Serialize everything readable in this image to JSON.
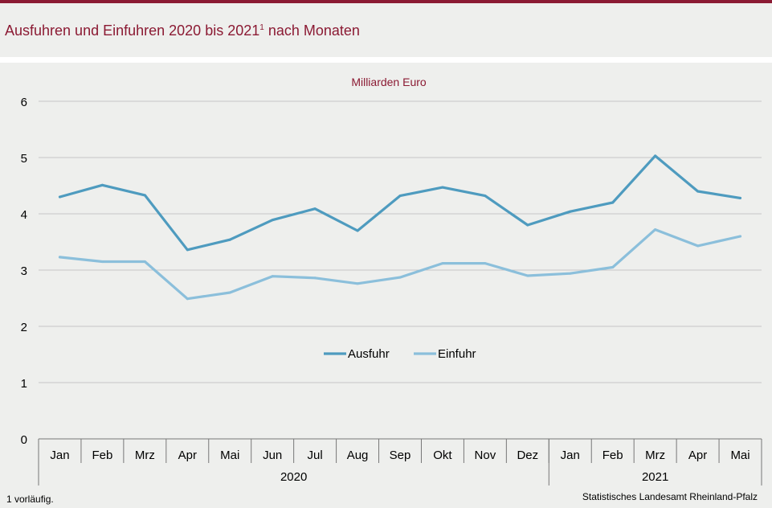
{
  "header": {
    "title": "Ausfuhren und Einfuhren 2020 bis 2021",
    "title_superscript": "1",
    "title_suffix": " nach Monaten"
  },
  "footer": {
    "footnote": "1 vorläufig.",
    "source": "Statistisches Landesamt Rheinland-Pfalz"
  },
  "colors": {
    "brand": "#8b1a33",
    "ausfuhr": "#4e9bbf",
    "einfuhr": "#8bbfdb",
    "grid": "#c6c6c6"
  },
  "chart_data": {
    "type": "line",
    "unit_label": "Milliarden Euro",
    "x": [
      "Jan",
      "Feb",
      "Mrz",
      "Apr",
      "Mai",
      "Jun",
      "Jul",
      "Aug",
      "Sep",
      "Okt",
      "Nov",
      "Dez",
      "Jan",
      "Feb",
      "Mrz",
      "Apr",
      "Mai"
    ],
    "year_groups": [
      {
        "label": "2020",
        "count": 12
      },
      {
        "label": "2021",
        "count": 5
      }
    ],
    "y_ticks": [
      "0",
      "1",
      "2",
      "3",
      "4",
      "5",
      "6"
    ],
    "ylim": [
      0,
      6
    ],
    "grid": true,
    "legend_position": "center",
    "series": [
      {
        "name": "Ausfuhr",
        "values": [
          4.3,
          4.51,
          4.33,
          3.36,
          3.54,
          3.89,
          4.09,
          3.7,
          4.32,
          4.47,
          4.32,
          3.8,
          4.04,
          4.2,
          5.03,
          4.4,
          4.28
        ]
      },
      {
        "name": "Einfuhr",
        "values": [
          3.23,
          3.15,
          3.15,
          2.49,
          2.6,
          2.89,
          2.86,
          2.76,
          2.87,
          3.12,
          3.12,
          2.9,
          2.94,
          3.05,
          3.72,
          3.43,
          3.6
        ]
      }
    ]
  }
}
